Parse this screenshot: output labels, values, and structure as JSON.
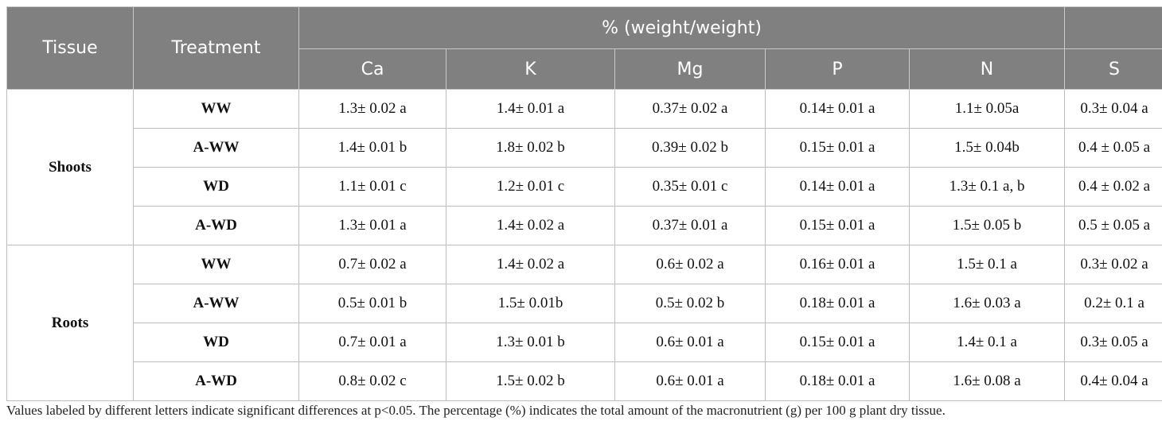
{
  "header": {
    "tissue": "Tissue",
    "treatment": "Treatment",
    "group": "% (weight/weight)",
    "nutrients": [
      "Ca",
      "K",
      "Mg",
      "P",
      "N",
      "S"
    ]
  },
  "groups": [
    {
      "tissue": "Shoots",
      "rows": [
        {
          "treatment": "WW",
          "values": [
            "1.3± 0.02 a",
            "1.4± 0.01 a",
            "0.37± 0.02 a",
            "0.14± 0.01 a",
            "1.1± 0.05a",
            "0.3± 0.04 a"
          ]
        },
        {
          "treatment": "A-WW",
          "values": [
            "1.4± 0.01 b",
            "1.8± 0.02 b",
            "0.39± 0.02 b",
            "0.15± 0.01 a",
            "1.5± 0.04b",
            "0.4 ± 0.05 a"
          ]
        },
        {
          "treatment": "WD",
          "values": [
            "1.1± 0.01 c",
            "1.2± 0.01 c",
            "0.35± 0.01 c",
            "0.14± 0.01 a",
            "1.3± 0.1 a, b",
            "0.4 ± 0.02 a"
          ]
        },
        {
          "treatment": "A-WD",
          "values": [
            "1.3± 0.01 a",
            "1.4± 0.02 a",
            "0.37± 0.01 a",
            "0.15± 0.01 a",
            "1.5± 0.05 b",
            "0.5 ± 0.05 a"
          ]
        }
      ]
    },
    {
      "tissue": "Roots",
      "rows": [
        {
          "treatment": "WW",
          "values": [
            "0.7± 0.02 a",
            "1.4± 0.02 a",
            "0.6± 0.02 a",
            "0.16± 0.01 a",
            "1.5± 0.1 a",
            "0.3± 0.02 a"
          ]
        },
        {
          "treatment": "A-WW",
          "values": [
            "0.5± 0.01 b",
            "1.5± 0.01b",
            "0.5± 0.02 b",
            "0.18± 0.01 a",
            "1.6± 0.03 a",
            "0.2± 0.1 a"
          ]
        },
        {
          "treatment": "WD",
          "values": [
            "0.7± 0.01 a",
            "1.3± 0.01 b",
            "0.6± 0.01 a",
            "0.15± 0.01 a",
            "1.4± 0.1 a",
            "0.3± 0.05 a"
          ]
        },
        {
          "treatment": "A-WD",
          "values": [
            "0.8± 0.02 c",
            "1.5± 0.02 b",
            "0.6± 0.01 a",
            "0.18± 0.01 a",
            "1.6± 0.08 a",
            "0.4± 0.04 a"
          ]
        }
      ]
    }
  ],
  "footnote": "Values labeled by different letters indicate significant differences at p<0.05. The percentage (%) indicates the total amount of the macronutrient (g) per 100 g plant dry tissue.",
  "colors": {
    "header_bg": "#808080",
    "header_text": "#ffffff",
    "border": "#bdbdbd"
  }
}
